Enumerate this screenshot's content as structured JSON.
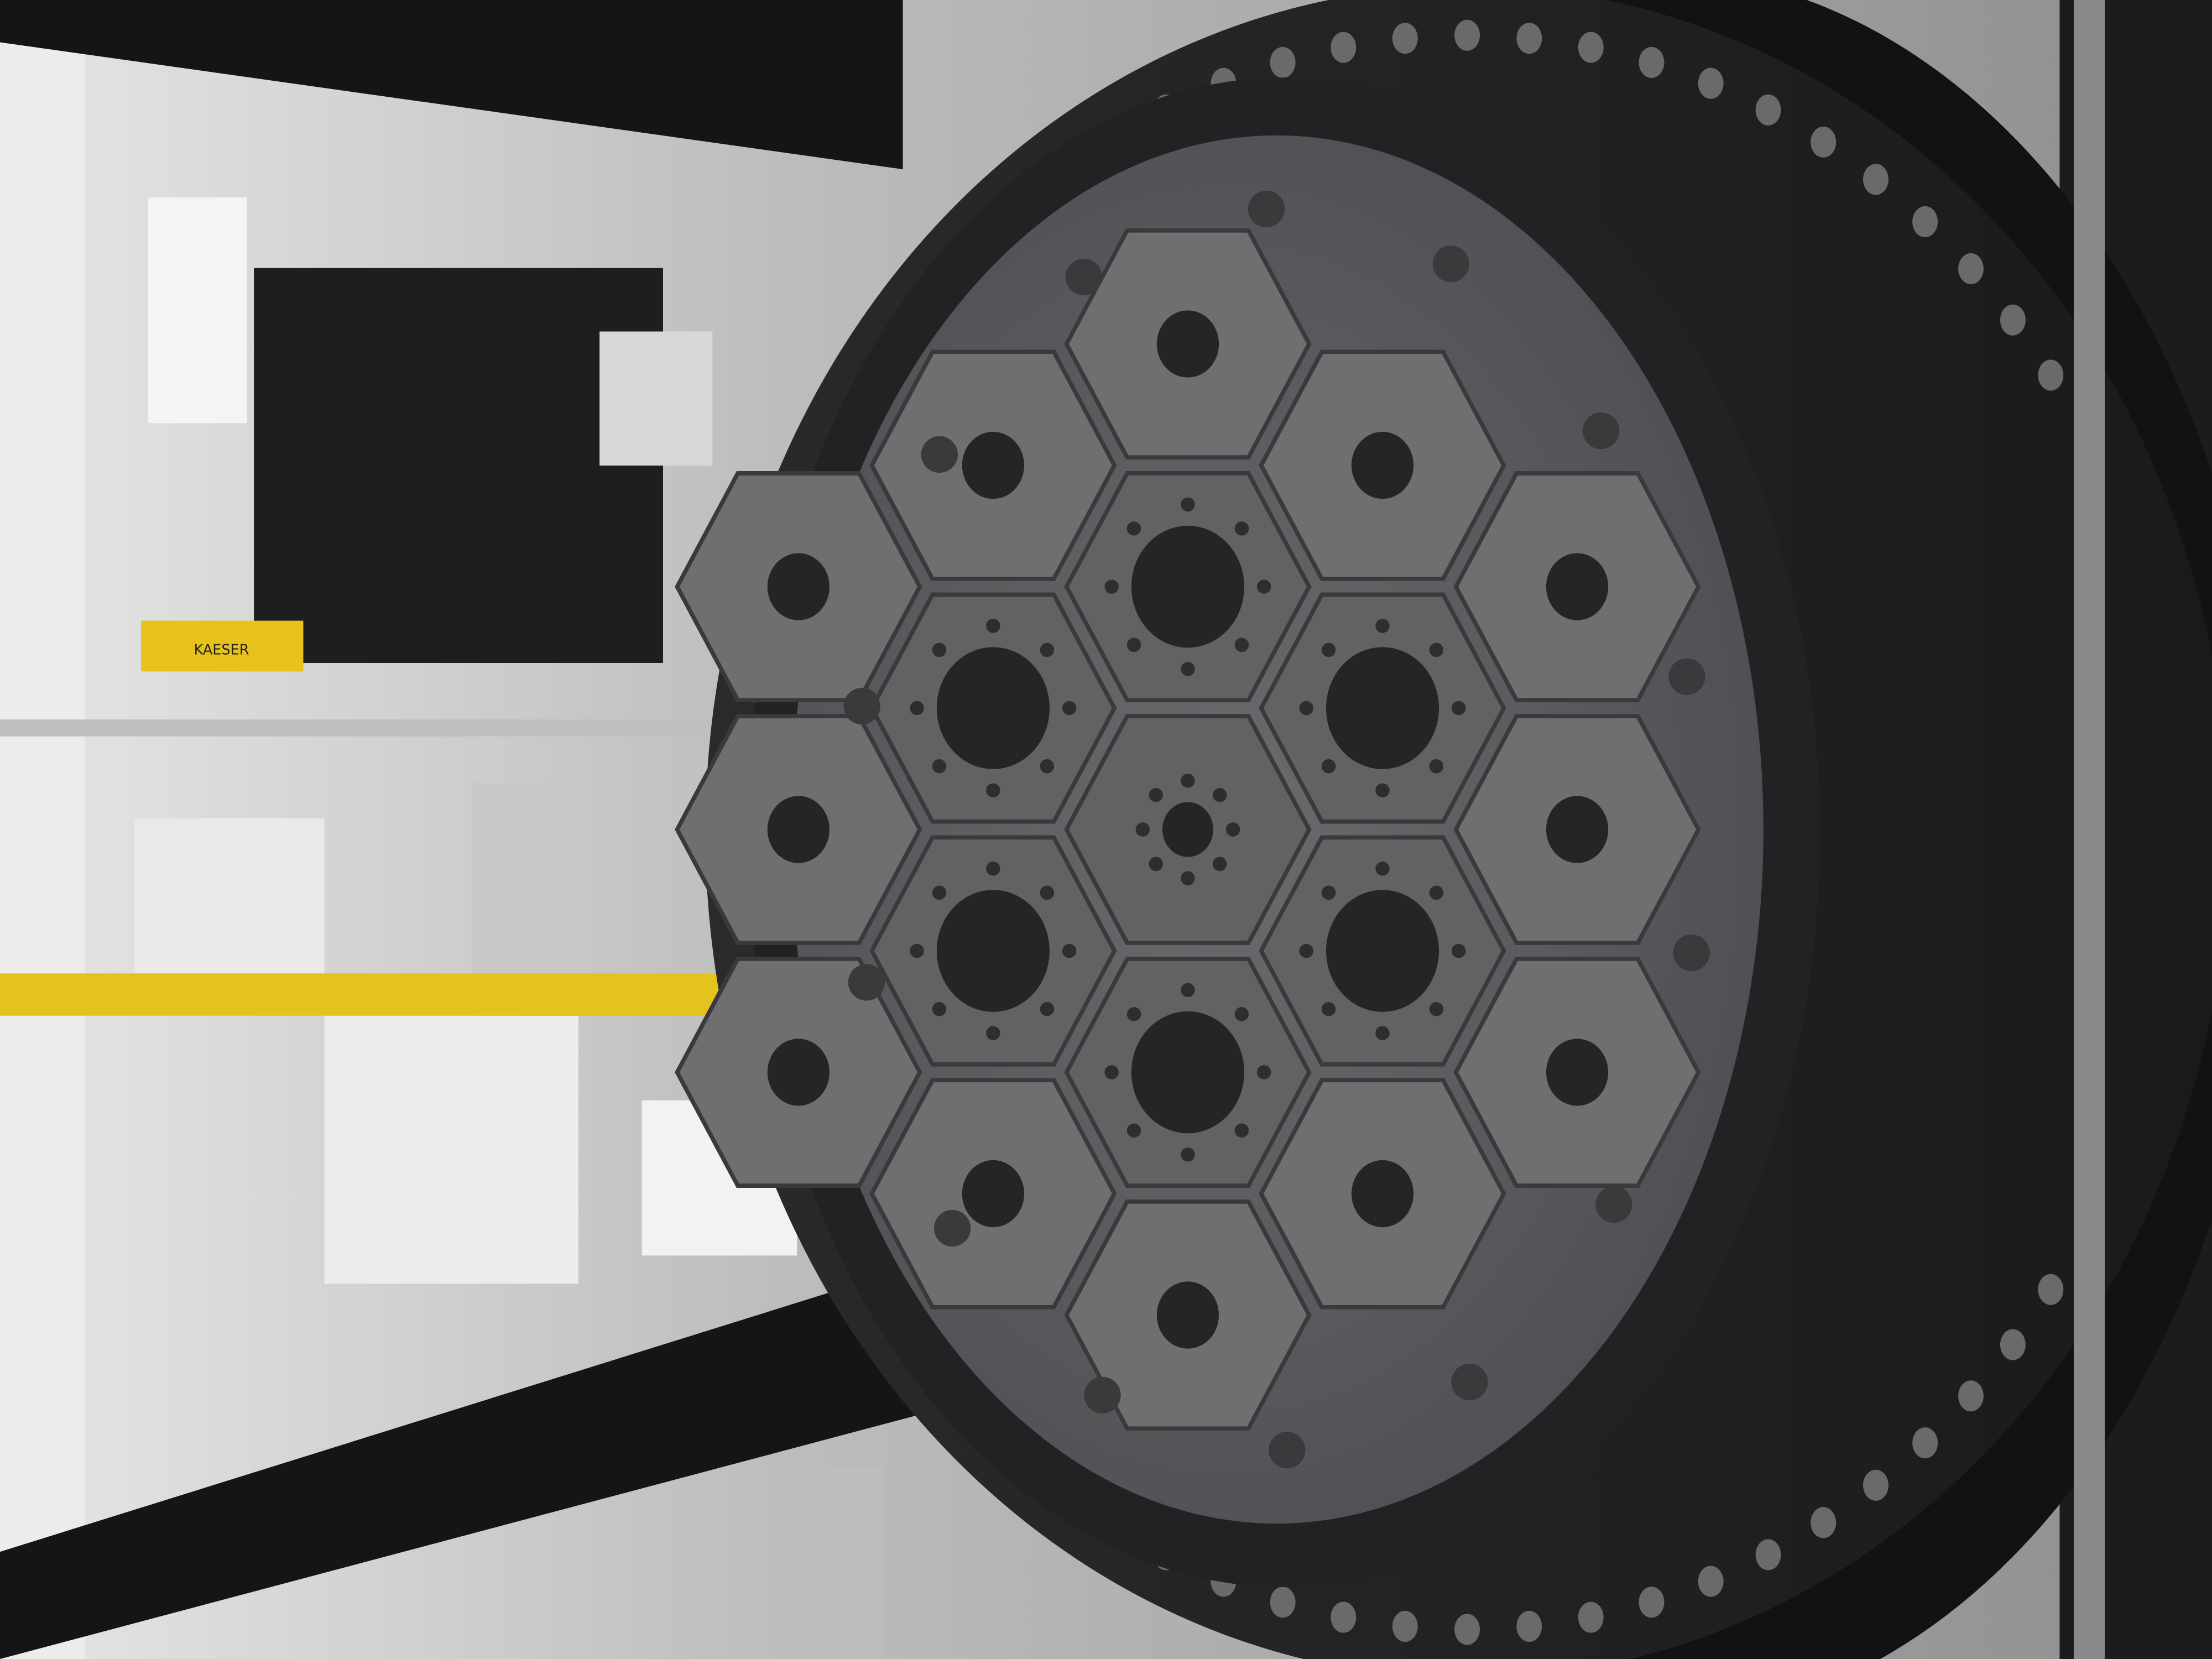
{
  "labels": {
    "compressor": "KAESER"
  }
}
